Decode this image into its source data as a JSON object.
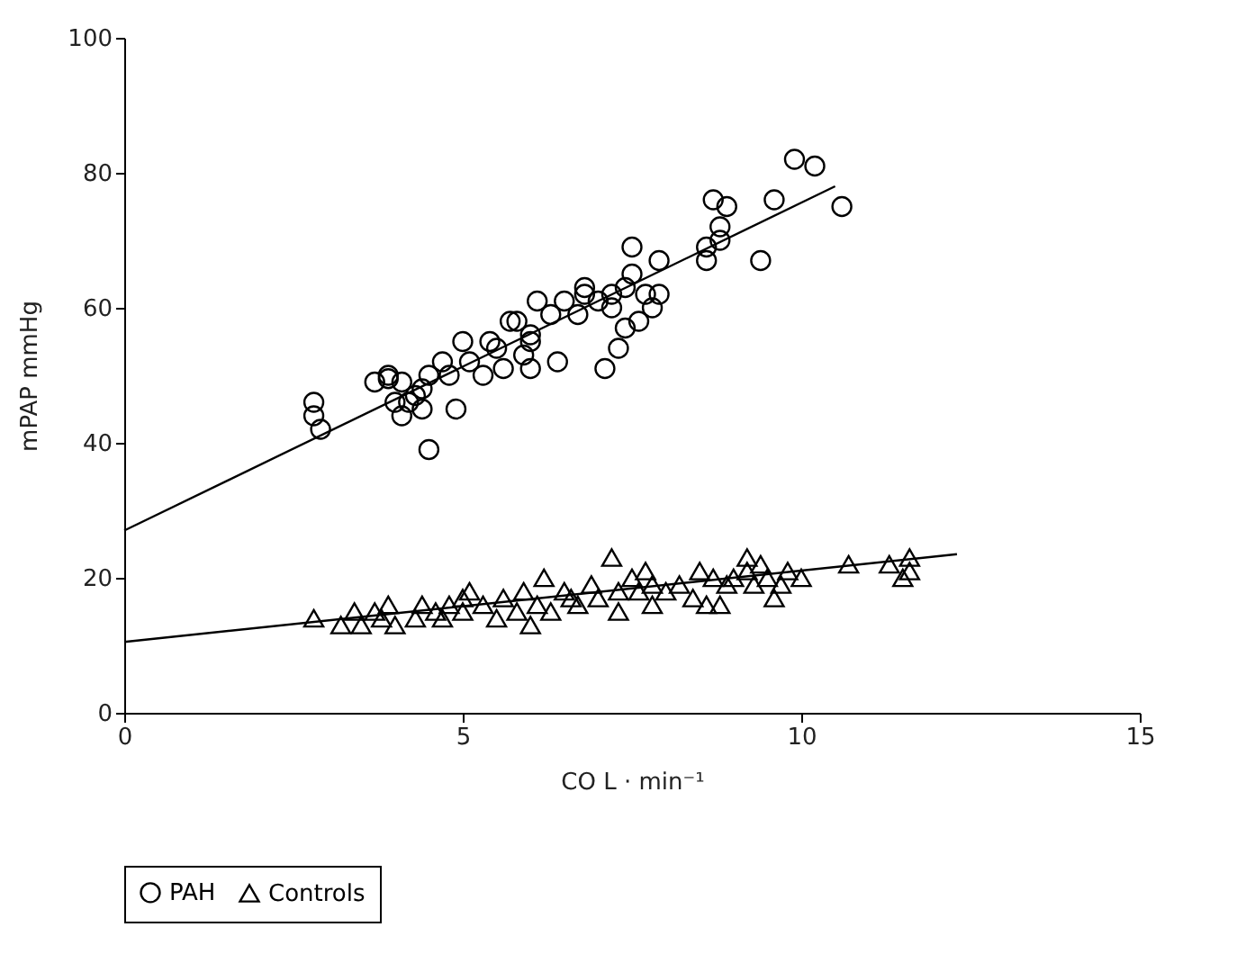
{
  "chart_data": {
    "type": "scatter",
    "xlabel": "CO L · min⁻¹",
    "ylabel": "mPAP mmHg",
    "xlim": [
      0,
      15
    ],
    "xticks": [
      0,
      5,
      10,
      15
    ],
    "ylim": [
      0,
      100
    ],
    "yticks": [
      0,
      20,
      40,
      60,
      80,
      100
    ],
    "grid": false,
    "legend": "bottom",
    "series": [
      {
        "name": "PAH",
        "type": "scatter",
        "marker": "circle",
        "color": "#000000",
        "x": [
          2.8,
          2.8,
          2.9,
          3.7,
          3.9,
          3.9,
          4.0,
          4.1,
          4.1,
          4.2,
          4.3,
          4.4,
          4.4,
          4.5,
          4.5,
          4.7,
          4.8,
          4.9,
          5.0,
          5.1,
          5.3,
          5.4,
          5.5,
          5.6,
          5.7,
          5.8,
          5.9,
          6.0,
          6.0,
          6.0,
          6.1,
          6.3,
          6.4,
          6.5,
          6.7,
          6.8,
          6.8,
          7.0,
          7.1,
          7.2,
          7.2,
          7.3,
          7.4,
          7.4,
          7.5,
          7.5,
          7.6,
          7.7,
          7.8,
          7.9,
          7.9,
          8.6,
          8.6,
          8.7,
          8.8,
          8.8,
          8.9,
          9.4,
          9.6,
          9.9,
          10.2,
          10.6
        ],
        "values": [
          46,
          44,
          42,
          49,
          49.5,
          50,
          46,
          44,
          49,
          46,
          47,
          45,
          48,
          50,
          39,
          52,
          50,
          45,
          55,
          52,
          50,
          55,
          54,
          51,
          58,
          58,
          53,
          56,
          55,
          51,
          61,
          59,
          52,
          61,
          59,
          62,
          63,
          61,
          51,
          60,
          62,
          54,
          57,
          63,
          69,
          65,
          58,
          62,
          60,
          67,
          62,
          67,
          69,
          76,
          70,
          72,
          75,
          67,
          76,
          82,
          81,
          75
        ]
      },
      {
        "name": "Controls",
        "type": "scatter",
        "marker": "triangle",
        "color": "#000000",
        "x": [
          2.8,
          3.2,
          3.4,
          3.5,
          3.7,
          3.8,
          3.9,
          4.0,
          4.3,
          4.4,
          4.6,
          4.7,
          4.8,
          5.0,
          5.0,
          5.1,
          5.3,
          5.5,
          5.6,
          5.8,
          5.9,
          6.0,
          6.1,
          6.2,
          6.3,
          6.5,
          6.6,
          6.7,
          6.9,
          7.0,
          7.2,
          7.3,
          7.3,
          7.5,
          7.6,
          7.7,
          7.8,
          7.8,
          8.0,
          8.2,
          8.4,
          8.5,
          8.6,
          8.7,
          8.8,
          8.9,
          9.0,
          9.2,
          9.2,
          9.3,
          9.4,
          9.5,
          9.6,
          9.7,
          9.8,
          10.0,
          10.7,
          11.3,
          11.5,
          11.6,
          11.6
        ],
        "values": [
          14,
          13,
          15,
          13,
          15,
          14,
          16,
          13,
          14,
          16,
          15,
          14,
          16,
          15,
          17,
          18,
          16,
          14,
          17,
          15,
          18,
          13,
          16,
          20,
          15,
          18,
          17,
          16,
          19,
          17,
          23,
          18,
          15,
          20,
          18,
          21,
          19,
          16,
          18,
          19,
          17,
          21,
          16,
          20,
          16,
          19,
          20,
          23,
          21,
          19,
          22,
          20,
          17,
          19,
          21,
          20,
          22,
          22,
          20,
          23,
          21
        ]
      },
      {
        "type": "line",
        "color": "#000000",
        "x": [
          0,
          10.5
        ],
        "values": [
          27,
          78
        ]
      },
      {
        "type": "line",
        "color": "#000000",
        "x": [
          0,
          12.3
        ],
        "values": [
          10.5,
          23.5
        ]
      }
    ]
  }
}
